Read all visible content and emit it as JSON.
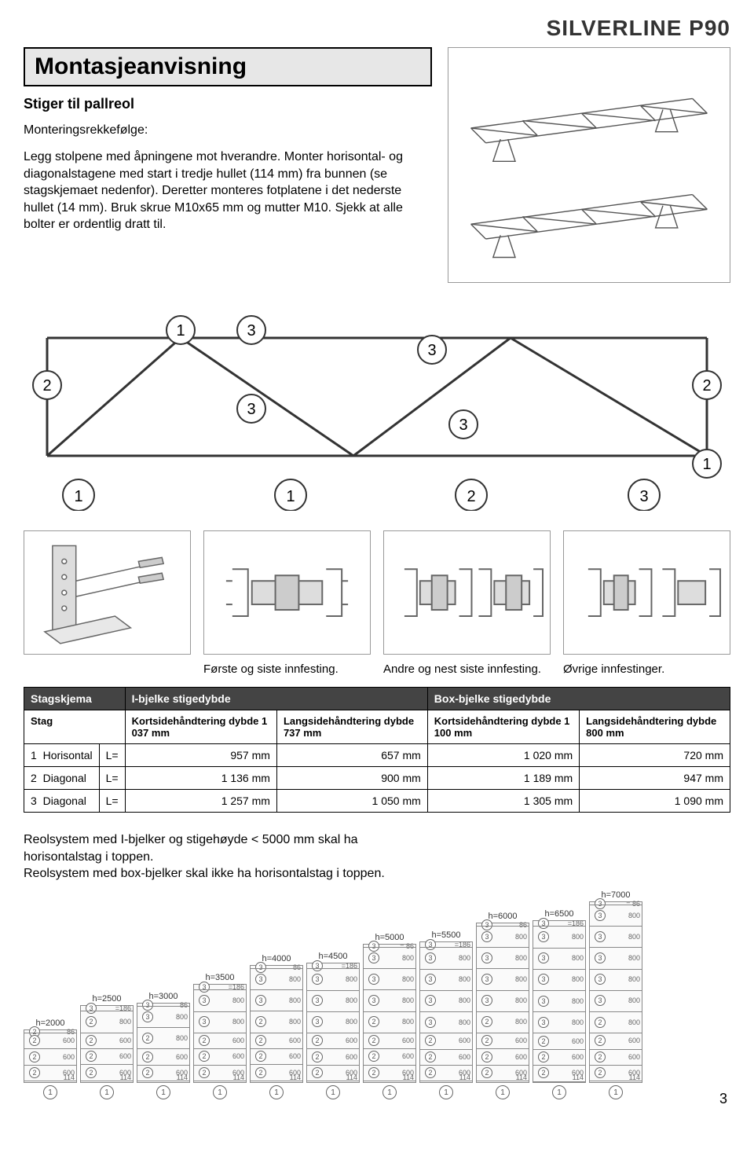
{
  "brand": "SILVERLINE P90",
  "title": "Montasjeanvisning",
  "subtitle": "Stiger til pallreol",
  "sequence_label": "Monteringsrekkefølge:",
  "body_text": "Legg stolpene med åpningene mot hverandre. Monter horisontal- og diagonalstagene med start i tredje hullet (114 mm) fra bunnen (se stagskjemaet nedenfor). Deretter monteres fotplatene i det nederste hullet (14 mm). Bruk skrue M10x65 mm og mutter M10. Sjekk at alle bolter er ordentlig dratt til.",
  "truss_labels": [
    "1",
    "3",
    "3",
    "2",
    "3",
    "3",
    "2",
    "1",
    "1",
    "1",
    "2",
    "3"
  ],
  "panels": {
    "cap1": "Første og siste innfesting.",
    "cap2": "Andre og nest siste innfesting.",
    "cap3": "Øvrige innfestinger."
  },
  "schema": {
    "head_left": "Stagskjema",
    "head_mid": "I-bjelke stigedybde",
    "head_right": "Box-bjelke stigedybde",
    "row2c0": "Stag",
    "row2c1": "Kortsidehåndtering dybde 1 037 mm",
    "row2c2": "Langsidehåndtering dybde 737 mm",
    "row2c3": "Kortsidehåndtering dybde 1 100 mm",
    "row2c4": "Langsidehåndtering dybde 800 mm",
    "rows": [
      {
        "n": "1",
        "name": "Horisontal",
        "l": "L=",
        "v": [
          "957 mm",
          "657 mm",
          "1 020 mm",
          "720 mm"
        ]
      },
      {
        "n": "2",
        "name": "Diagonal",
        "l": "L=",
        "v": [
          "1 136 mm",
          "900 mm",
          "1 189 mm",
          "947 mm"
        ]
      },
      {
        "n": "3",
        "name": "Diagonal",
        "l": "L=",
        "v": [
          "1 257 mm",
          "1 050 mm",
          "1 305 mm",
          "1 090 mm"
        ]
      }
    ]
  },
  "footer1": "Reolsystem med I-bjelker og stigehøyde < 5000 mm skal ha horisontalstag i toppen.",
  "footer2": "Reolsystem med box-bjelker skal ikke ha horisontalstag i toppen.",
  "ladders": [
    {
      "h": "h=2000",
      "cells": [
        {
          "c": "2",
          "r": "86"
        },
        {
          "c": "2",
          "r": "600"
        },
        {
          "c": "2",
          "r": "600"
        },
        {
          "c": "2",
          "r": "600"
        }
      ],
      "foot": "114"
    },
    {
      "h": "h=2500",
      "cells": [
        {
          "c": "3",
          "r": "=186"
        },
        {
          "c": "2",
          "r": "800"
        },
        {
          "c": "2",
          "r": "600"
        },
        {
          "c": "2",
          "r": "600"
        },
        {
          "c": "2",
          "r": "600"
        }
      ],
      "foot": "114"
    },
    {
      "h": "h=3000",
      "cells": [
        {
          "c": "3",
          "r": "86"
        },
        {
          "c": "3",
          "r": "800"
        },
        {
          "c": "2",
          "r": "800"
        },
        {
          "c": "2",
          "r": "600"
        },
        {
          "c": "2",
          "r": "600"
        }
      ],
      "foot": "114"
    },
    {
      "h": "h=3500",
      "cells": [
        {
          "c": "3",
          "r": "=186"
        },
        {
          "c": "3",
          "r": "800"
        },
        {
          "c": "3",
          "r": "800"
        },
        {
          "c": "2",
          "r": "600"
        },
        {
          "c": "2",
          "r": "600"
        },
        {
          "c": "2",
          "r": "600"
        }
      ],
      "foot": "114"
    },
    {
      "h": "h=4000",
      "cells": [
        {
          "c": "3",
          "r": "86"
        },
        {
          "c": "3",
          "r": "800"
        },
        {
          "c": "3",
          "r": "800"
        },
        {
          "c": "2",
          "r": "800"
        },
        {
          "c": "2",
          "r": "600"
        },
        {
          "c": "2",
          "r": "600"
        },
        {
          "c": "2",
          "r": "600"
        }
      ],
      "foot": "114"
    },
    {
      "h": "h=4500",
      "cells": [
        {
          "c": "3",
          "r": "=186"
        },
        {
          "c": "3",
          "r": "800"
        },
        {
          "c": "3",
          "r": "800"
        },
        {
          "c": "3",
          "r": "800"
        },
        {
          "c": "2",
          "r": "600"
        },
        {
          "c": "2",
          "r": "600"
        },
        {
          "c": "2",
          "r": "600"
        }
      ],
      "foot": "114"
    },
    {
      "h": "h=5000",
      "cells": [
        {
          "c": "3",
          "r": "= 86"
        },
        {
          "c": "3",
          "r": "800"
        },
        {
          "c": "3",
          "r": "800"
        },
        {
          "c": "3",
          "r": "800"
        },
        {
          "c": "2",
          "r": "800"
        },
        {
          "c": "2",
          "r": "600"
        },
        {
          "c": "2",
          "r": "600"
        },
        {
          "c": "2",
          "r": "600"
        }
      ],
      "foot": "114"
    },
    {
      "h": "h=5500",
      "cells": [
        {
          "c": "3",
          "r": "=186"
        },
        {
          "c": "3",
          "r": "800"
        },
        {
          "c": "3",
          "r": "800"
        },
        {
          "c": "3",
          "r": "800"
        },
        {
          "c": "3",
          "r": "800"
        },
        {
          "c": "2",
          "r": "600"
        },
        {
          "c": "2",
          "r": "600"
        },
        {
          "c": "2",
          "r": "600"
        }
      ],
      "foot": "114"
    },
    {
      "h": "h=6000",
      "cells": [
        {
          "c": "3",
          "r": "86"
        },
        {
          "c": "3",
          "r": "800"
        },
        {
          "c": "3",
          "r": "800"
        },
        {
          "c": "3",
          "r": "800"
        },
        {
          "c": "3",
          "r": "800"
        },
        {
          "c": "2",
          "r": "800"
        },
        {
          "c": "2",
          "r": "600"
        },
        {
          "c": "2",
          "r": "600"
        },
        {
          "c": "2",
          "r": "600"
        }
      ],
      "foot": "114"
    },
    {
      "h": "h=6500",
      "cells": [
        {
          "c": "3",
          "r": "=186"
        },
        {
          "c": "3",
          "r": "800"
        },
        {
          "c": "3",
          "r": "800"
        },
        {
          "c": "3",
          "r": "800"
        },
        {
          "c": "3",
          "r": "800"
        },
        {
          "c": "3",
          "r": "800"
        },
        {
          "c": "2",
          "r": "600"
        },
        {
          "c": "2",
          "r": "600"
        },
        {
          "c": "2",
          "r": "600"
        }
      ],
      "foot": "114"
    },
    {
      "h": "h=7000",
      "cells": [
        {
          "c": "3",
          "r": "= 86"
        },
        {
          "c": "3",
          "r": "800"
        },
        {
          "c": "3",
          "r": "800"
        },
        {
          "c": "3",
          "r": "800"
        },
        {
          "c": "3",
          "r": "800"
        },
        {
          "c": "3",
          "r": "800"
        },
        {
          "c": "2",
          "r": "800"
        },
        {
          "c": "2",
          "r": "600"
        },
        {
          "c": "2",
          "r": "600"
        },
        {
          "c": "2",
          "r": "600"
        }
      ],
      "foot": "114"
    }
  ],
  "page_number": "3",
  "colors": {
    "brand": "#333333",
    "titlebox_bg": "#e7e7e7",
    "table_head_bg": "#444444"
  }
}
